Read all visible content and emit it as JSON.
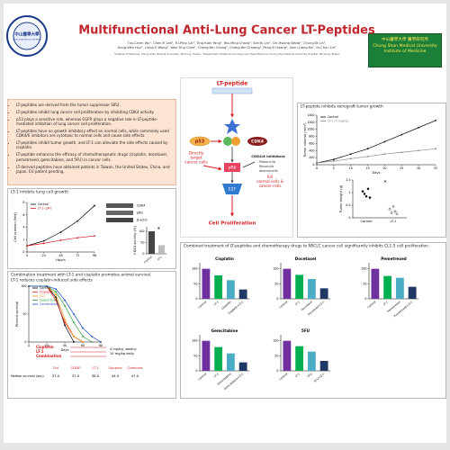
{
  "header": {
    "title": "Multifunctional Anti-Lung Cancer LT-Peptides",
    "authors": [
      "Tzu-Chien Wu¹, Chen-Yi Lee¹, Fu-Ping Cai¹, Ting-Yuan Yang¹, Yao-Ming Chang¹, Sze-Yu Lin¹, Chi-Hsiang Wang¹, Chung-Ta Lin¹,",
      "Hung-Wen Hsu¹, Liang-Yi Wang¹, Wen-Ting Chen¹, Cheng-Yen Chang¹, Cheng-Yen Chuang¹, Peng-Yi Huang¹, Jiunn-Liang Ko¹, Yu-Chun Lin¹"
    ],
    "affiliation": "¹Institute of Medicine, Chung Shan Medical University, Taichung, Taiwan; ²Department of Medical Oncology and Chest Medicine, Chung Shan Medical University Hospital, Taichung, Taiwan",
    "logo": [
      "中山醫學大學",
      "CHUNG SHAN MEDICAL UNIVERSITY"
    ],
    "badge": [
      "中山醫學大學 醫學研究所",
      "Chung Shan Medical University",
      "Institute of Medicine"
    ]
  },
  "bullets": [
    "LT-peptides are derived from the tumor suppressor SIR2.",
    "LT-peptides inhibit lung cancer cell proliferation by inhibiting CDK4 activity.",
    "p53 plays a sensitive role, whereas EGFR plays a negative role in LT-peptide-mediated inhibition of lung cancer cell proliferation.",
    "LT-peptides have no growth inhibitory effect on normal cells, while commonly used CDK4/6 inhibitors are cytotoxic to normal cells and cause side effects.",
    "LT-peptides inhibit tumor growth, and LT-1 can alleviate the side effects caused by cisplatin.",
    "LT-peptide enhances the efficacy of chemotherapeutic drugs (cisplatin, docetaxel, pemetrexed, gemcitabine, and 5FU) in cancer cells.",
    "LT-derived peptides have obtained patents in Taiwan, the United States, China, and Japan. EU patent pending."
  ],
  "diagram": {
    "peptide": "LT-peptide",
    "p53": "p53",
    "cdk4": "CDK4",
    "direct": [
      "Directly",
      "target",
      "cancer cells"
    ],
    "inhibitors": "CDK4/6 inhibitors",
    "drugs": [
      "Palbociclib",
      "Ribociclib",
      "Abemaciclib"
    ],
    "kill": [
      "Kill",
      "normal cells &",
      "cancer cells"
    ],
    "prb": "pRb",
    "e2f": "E2F",
    "prolif": "Cell Proliferation"
  },
  "panels": {
    "growth": "LT-1 inhibits lung cell growth",
    "blot": [
      "CDK4",
      "pRb",
      "β-actin"
    ],
    "xeno": "LT-peptide inhibits xenograft tumor growth",
    "survival": [
      "Combination treatment with LT-1 and cisplatin promotes animal survival.",
      "LT-1 reduces cisplatin-induced side effects"
    ],
    "combo": "Combined treatment of LT-peptides and chemotherapy drugs to NSCLC cancer cell significantly inhibits CL1-5 cell proliferation"
  },
  "survival_notes": {
    "left": [
      "Cisplatin",
      "LT-1",
      "Combination"
    ],
    "right": [
      "4 mg/kg, weekly",
      "10 mg/kg daily"
    ]
  },
  "survival_table": {
    "columns": [
      "Ctrl",
      "CDDP",
      "LT-1",
      "Support",
      "Combine"
    ],
    "row_label": "Median survival (day)",
    "values": [
      37,
      37,
      38,
      44,
      47
    ],
    "value_labels": [
      "37.0",
      "37.0",
      "38.0",
      "44.0",
      "47.0"
    ]
  },
  "chart_data": [
    {
      "type": "line",
      "x": [
        0,
        24,
        48,
        72,
        96
      ],
      "xlim": [
        0,
        96
      ],
      "xticks": [
        0,
        24,
        48,
        72,
        96
      ],
      "ylim": [
        0,
        8
      ],
      "yticks": [
        0,
        2,
        4,
        6,
        8
      ],
      "xlabel": "Hours",
      "ylabel": "Cell number (fold)",
      "series": [
        {
          "name": "Control",
          "color": "#000000",
          "values": [
            1,
            1.8,
            3.2,
            5,
            7.5
          ]
        },
        {
          "name": "LT-1 (μM)",
          "color": "#d42020",
          "values": [
            1,
            1.4,
            1.9,
            2.3,
            2.6
          ]
        }
      ]
    },
    {
      "type": "bar",
      "categories": [
        "Control",
        "LT-1"
      ],
      "values": [
        100,
        38
      ],
      "colors": [
        "#444444",
        "#bbbbbb"
      ],
      "ylim": [
        0,
        120
      ],
      "yticks": [
        0,
        50,
        100
      ],
      "ylabel": "CDK4 activity (%)",
      "annotation": "*"
    },
    {
      "type": "line",
      "x": [
        0,
        5,
        10,
        15,
        20,
        25,
        30,
        35
      ],
      "xlim": [
        0,
        35
      ],
      "xticks": [
        0,
        5,
        10,
        15,
        20,
        25,
        30,
        35
      ],
      "ylim": [
        0,
        1400
      ],
      "yticks": [
        0,
        200,
        400,
        600,
        800,
        1000,
        1200,
        1400
      ],
      "xlabel": "Days",
      "ylabel": "Tumor volume (mm³)",
      "series": [
        {
          "name": "Control",
          "color": "#000000",
          "values": [
            50,
            150,
            300,
            450,
            650,
            850,
            1050,
            1250
          ]
        },
        {
          "name": "LT-1 (5 mg/kg)",
          "color": "#888888",
          "values": [
            50,
            100,
            170,
            230,
            300,
            350,
            400,
            450
          ]
        }
      ]
    },
    {
      "type": "dot",
      "categories": [
        "Control",
        "LT-1"
      ],
      "points": [
        [
          1.05,
          0.95,
          0.85,
          1.15,
          0.8
        ],
        [
          0.35,
          0.2,
          0.45,
          0.25,
          0.15
        ]
      ],
      "ylim": [
        0,
        1.5
      ],
      "yticks": [
        0,
        0.5,
        1,
        1.5
      ],
      "ylabel": "Tumor weight (g)",
      "annotation": "*"
    },
    {
      "type": "line",
      "x": [
        0,
        20,
        30,
        40,
        50,
        60,
        70,
        80
      ],
      "xlim": [
        0,
        80
      ],
      "xticks": [
        0,
        20,
        40,
        60,
        80
      ],
      "ylim": [
        0,
        100
      ],
      "yticks": [
        0,
        50,
        100
      ],
      "xlabel": "Days",
      "ylabel": "Percent survival",
      "series": [
        {
          "name": "Control",
          "color": "#000000",
          "values": [
            100,
            100,
            80,
            30,
            0,
            null,
            null,
            null
          ]
        },
        {
          "name": "Cisplatin",
          "color": "#e02020",
          "values": [
            100,
            100,
            75,
            35,
            10,
            0,
            null,
            null
          ]
        },
        {
          "name": "LT-1",
          "color": "#f08c00",
          "values": [
            100,
            100,
            85,
            40,
            10,
            0,
            null,
            null
          ]
        },
        {
          "name": "Supportive",
          "color": "#2a9d3a",
          "values": [
            100,
            100,
            90,
            65,
            35,
            10,
            0,
            null
          ]
        },
        {
          "name": "Combination",
          "color": "#1f4fc0",
          "values": [
            100,
            100,
            95,
            75,
            50,
            25,
            10,
            0
          ]
        }
      ]
    },
    {
      "type": "bar",
      "title": "Cisplatin",
      "categories": [
        "Control",
        "LT-1",
        "Cisplatin",
        "Cisplatin+LT-1"
      ],
      "values": [
        100,
        78,
        62,
        31
      ],
      "colors": [
        "#7030a0",
        "#00b050",
        "#4bacc6",
        "#1f3864"
      ],
      "ylim": [
        0,
        120
      ],
      "yticks": [
        0,
        50,
        100
      ]
    },
    {
      "type": "bar",
      "title": "Docetaxel",
      "categories": [
        "Control",
        "LT-1",
        "Docetaxel",
        "Docetaxel+LT-1"
      ],
      "values": [
        100,
        80,
        66,
        35
      ],
      "colors": [
        "#7030a0",
        "#00b050",
        "#4bacc6",
        "#1f3864"
      ],
      "ylim": [
        0,
        120
      ],
      "yticks": [
        0,
        50,
        100
      ]
    },
    {
      "type": "bar",
      "title": "Pemetrexed",
      "categories": [
        "Control",
        "LT-1",
        "Pemetrexed",
        "Pemetrexed+LT-1"
      ],
      "values": [
        100,
        76,
        70,
        40
      ],
      "colors": [
        "#7030a0",
        "#00b050",
        "#4bacc6",
        "#1f3864"
      ],
      "ylim": [
        0,
        120
      ],
      "yticks": [
        0,
        50,
        100
      ]
    },
    {
      "type": "bar",
      "title": "Gemcitabine",
      "categories": [
        "Control",
        "LT-1",
        "Gemcitabine",
        "Gemcitabine+LT-1"
      ],
      "values": [
        100,
        79,
        58,
        28
      ],
      "colors": [
        "#7030a0",
        "#00b050",
        "#4bacc6",
        "#1f3864"
      ],
      "ylim": [
        0,
        120
      ],
      "yticks": [
        0,
        50,
        100
      ]
    },
    {
      "type": "bar",
      "title": "5FU",
      "categories": [
        "Control",
        "LT-1",
        "5FU",
        "5FU+LT-1"
      ],
      "values": [
        100,
        82,
        64,
        33
      ],
      "colors": [
        "#7030a0",
        "#00b050",
        "#4bacc6",
        "#1f3864"
      ],
      "ylim": [
        0,
        120
      ],
      "yticks": [
        0,
        50,
        100
      ]
    }
  ]
}
